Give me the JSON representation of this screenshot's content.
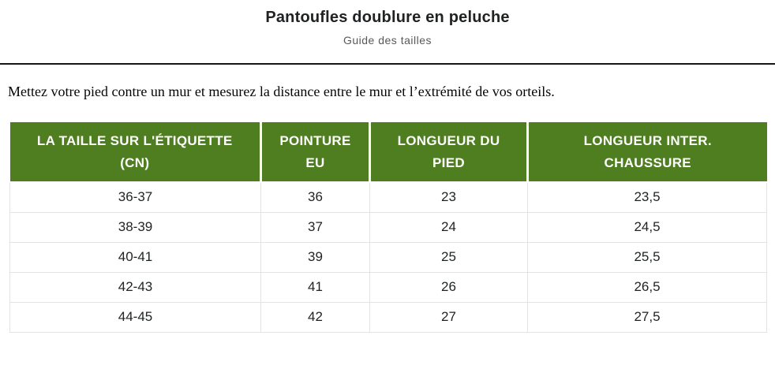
{
  "page": {
    "title": "Pantoufles doublure en peluche",
    "subtitle": "Guide des tailles",
    "instruction": "Mettez votre pied contre un mur et mesurez la distance entre le mur et l’extrémité de vos orteils."
  },
  "colors": {
    "header_background": "#4e7e20",
    "header_text": "#ffffff",
    "body_text": "#1f2223",
    "cell_border": "#e3e3e3",
    "divider": "#161616",
    "subtitle_text": "#56595c"
  },
  "table": {
    "headers": [
      "LA TAILLE SUR L'ÉTIQUETTE\n(CN)",
      "POINTURE\nEU",
      "LONGUEUR DU\nPIED",
      "LONGUEUR INTER.\nCHAUSSURE"
    ],
    "rows": [
      [
        "36-37",
        "36",
        "23",
        "23,5"
      ],
      [
        "38-39",
        "37",
        "24",
        "24,5"
      ],
      [
        "40-41",
        "39",
        "25",
        "25,5"
      ],
      [
        "42-43",
        "41",
        "26",
        "26,5"
      ],
      [
        "44-45",
        "42",
        "27",
        "27,5"
      ]
    ]
  }
}
